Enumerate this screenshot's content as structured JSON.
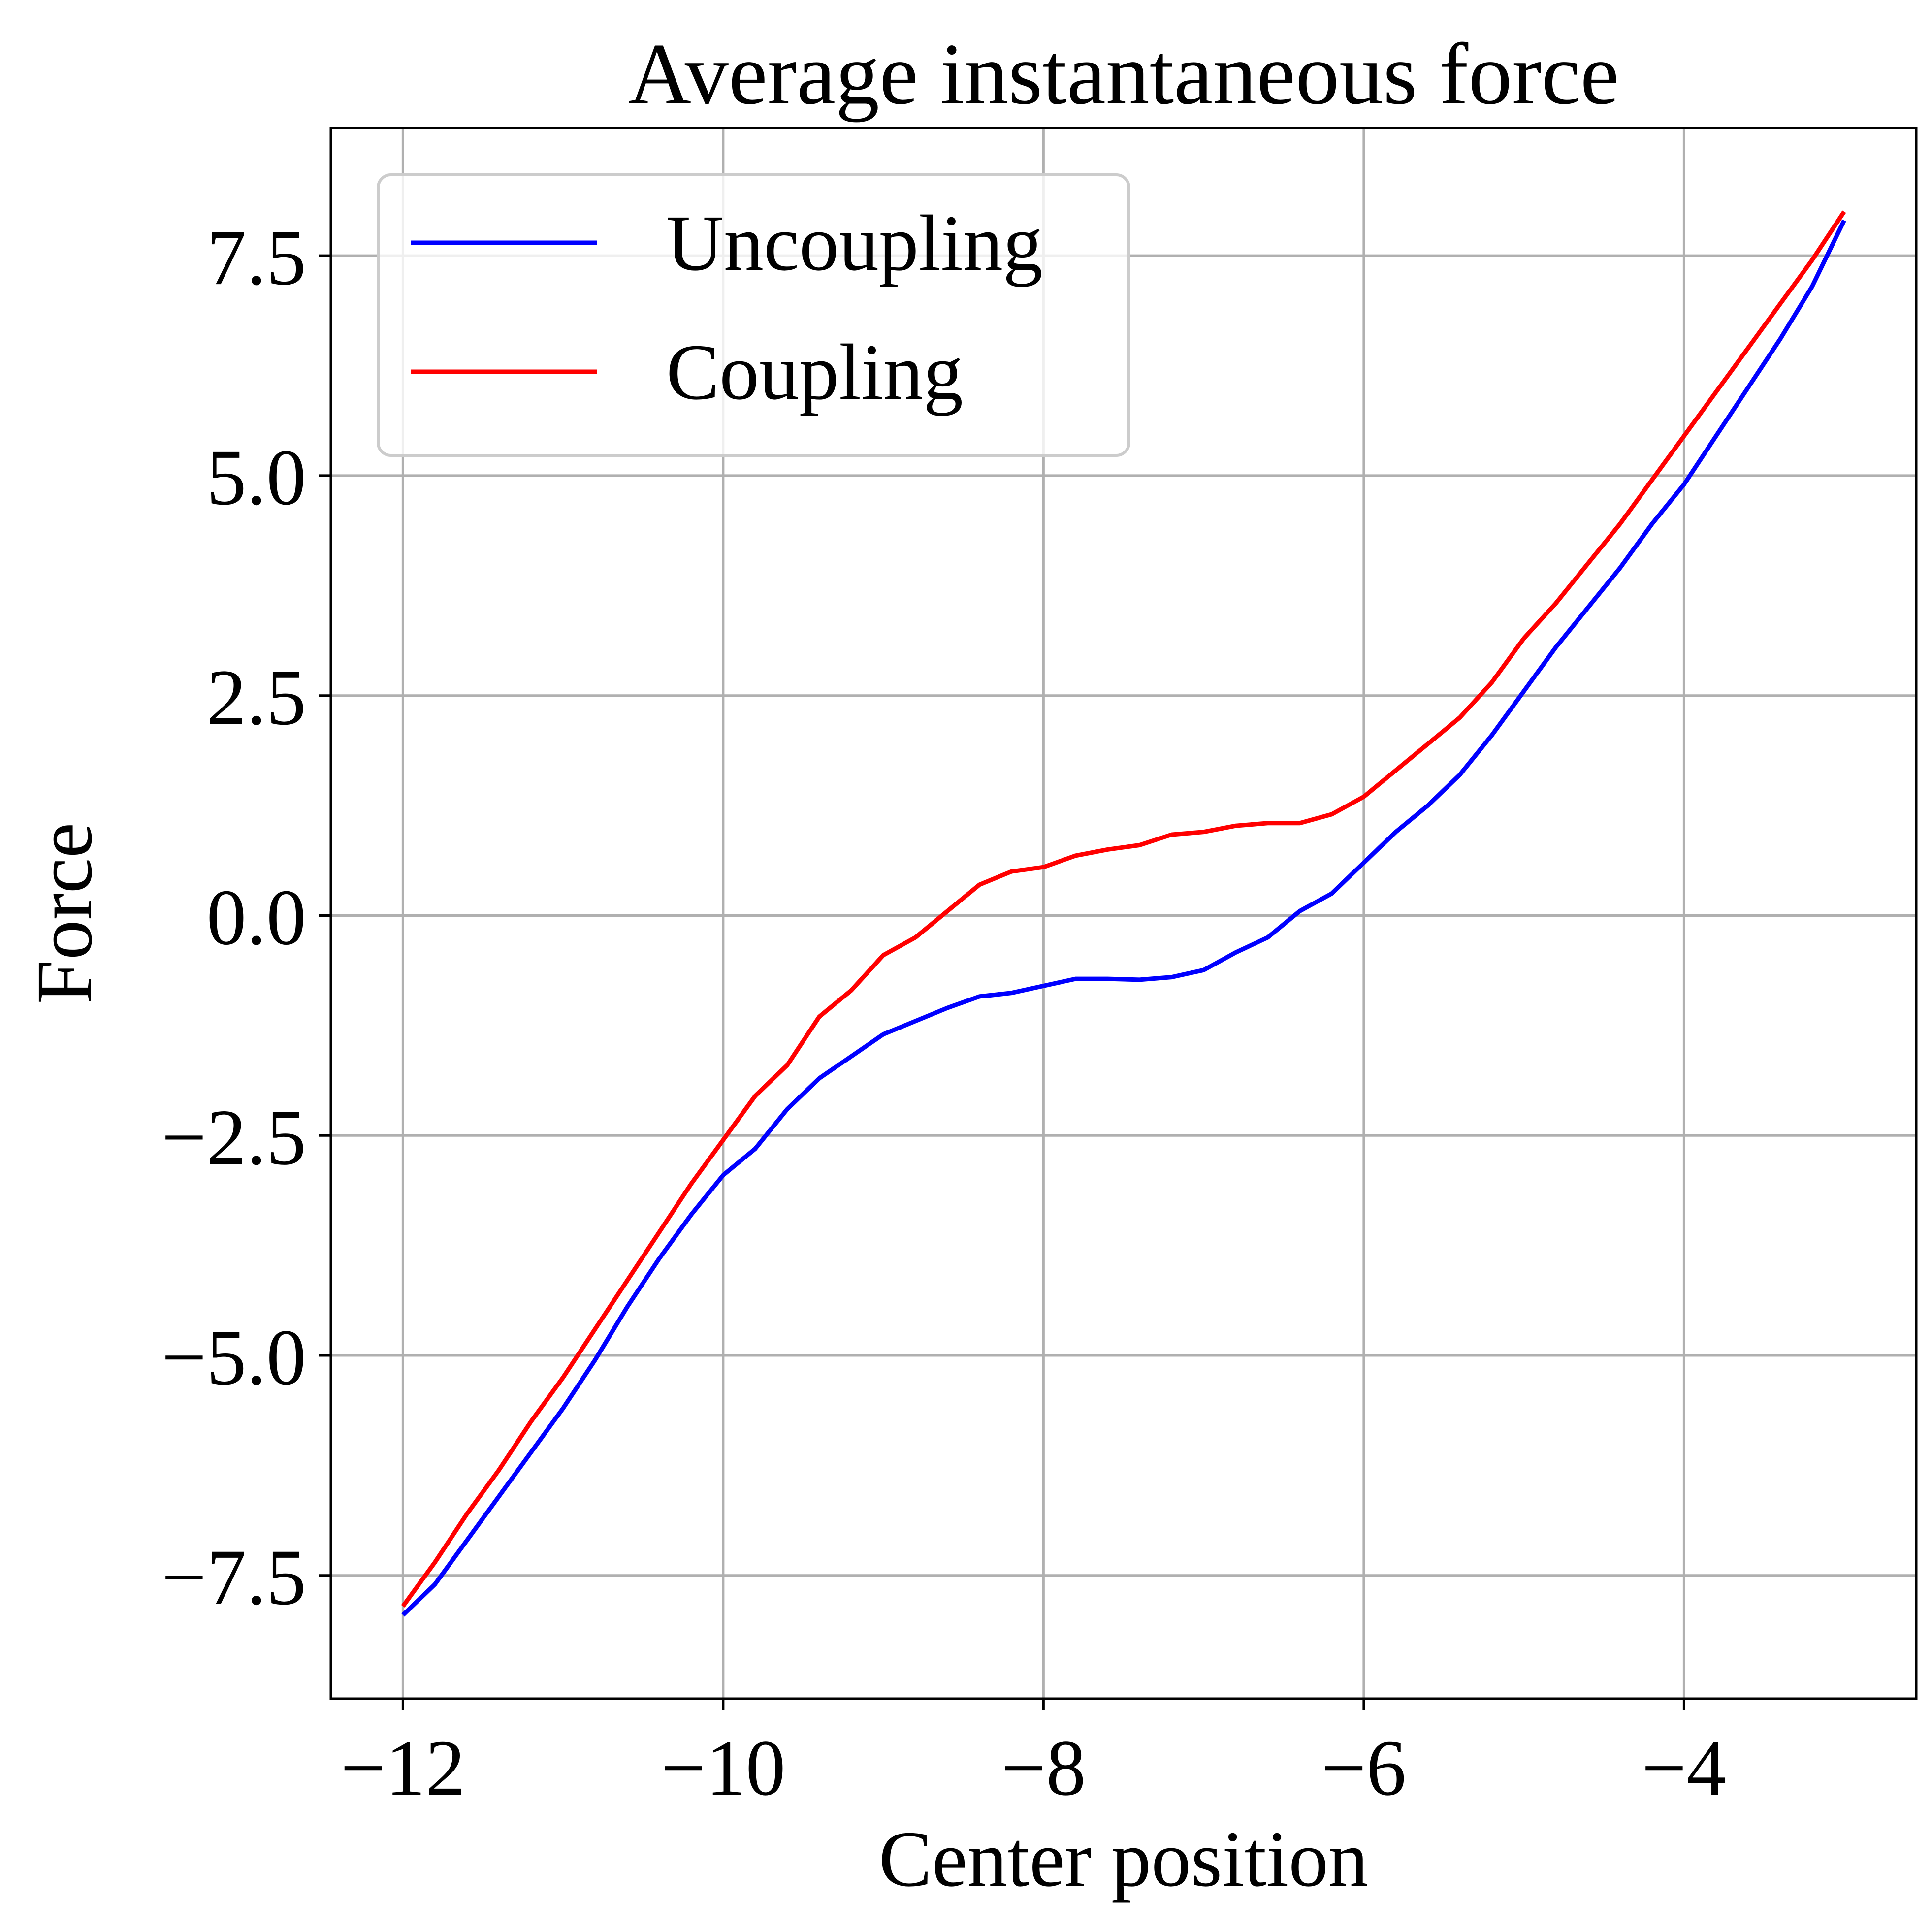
{
  "chart_data": {
    "type": "line",
    "title": "Average instantaneous force",
    "xlabel": "Center position",
    "ylabel": "Force",
    "xlim": [
      -12.45,
      -2.55
    ],
    "ylim": [
      -8.9,
      8.95
    ],
    "xticks": [
      -12,
      -10,
      -8,
      -6,
      -4
    ],
    "xtick_labels": [
      "−12",
      "−10",
      "−8",
      "−6",
      "−4"
    ],
    "yticks": [
      -7.5,
      -5.0,
      -2.5,
      0.0,
      2.5,
      5.0,
      7.5
    ],
    "ytick_labels": [
      "−7.5",
      "−5.0",
      "−2.5",
      "0.0",
      "2.5",
      "5.0",
      "7.5"
    ],
    "grid": true,
    "legend_position": "upper-left",
    "series": [
      {
        "name": "Uncoupling",
        "color": "#0000ff",
        "x": [
          -12.0,
          -11.8,
          -11.6,
          -11.4,
          -11.2,
          -11.0,
          -10.8,
          -10.6,
          -10.4,
          -10.2,
          -10.0,
          -9.8,
          -9.6,
          -9.4,
          -9.2,
          -9.0,
          -8.8,
          -8.6,
          -8.4,
          -8.2,
          -8.0,
          -7.8,
          -7.6,
          -7.4,
          -7.2,
          -7.0,
          -6.8,
          -6.6,
          -6.4,
          -6.2,
          -6.0,
          -5.8,
          -5.6,
          -5.4,
          -5.2,
          -5.0,
          -4.8,
          -4.6,
          -4.4,
          -4.2,
          -4.0,
          -3.8,
          -3.6,
          -3.4,
          -3.2,
          -3.0
        ],
        "y": [
          -7.95,
          -7.6,
          -7.1,
          -6.6,
          -6.1,
          -5.6,
          -5.05,
          -4.45,
          -3.9,
          -3.4,
          -2.95,
          -2.65,
          -2.2,
          -1.85,
          -1.6,
          -1.35,
          -1.2,
          -1.05,
          -0.92,
          -0.88,
          -0.8,
          -0.72,
          -0.72,
          -0.73,
          -0.7,
          -0.62,
          -0.42,
          -0.25,
          0.05,
          0.25,
          0.6,
          0.95,
          1.25,
          1.6,
          2.05,
          2.55,
          3.05,
          3.5,
          3.95,
          4.45,
          4.9,
          5.45,
          6.0,
          6.55,
          7.15,
          7.9
        ]
      },
      {
        "name": "Coupling",
        "color": "#ff0000",
        "x": [
          -12.0,
          -11.8,
          -11.6,
          -11.4,
          -11.2,
          -11.0,
          -10.8,
          -10.6,
          -10.4,
          -10.2,
          -10.0,
          -9.8,
          -9.6,
          -9.4,
          -9.2,
          -9.0,
          -8.8,
          -8.6,
          -8.4,
          -8.2,
          -8.0,
          -7.8,
          -7.6,
          -7.4,
          -7.2,
          -7.0,
          -6.8,
          -6.6,
          -6.4,
          -6.2,
          -6.0,
          -5.8,
          -5.6,
          -5.4,
          -5.2,
          -5.0,
          -4.8,
          -4.6,
          -4.4,
          -4.2,
          -4.0,
          -3.8,
          -3.6,
          -3.4,
          -3.2,
          -3.0
        ],
        "y": [
          -7.85,
          -7.35,
          -6.8,
          -6.3,
          -5.75,
          -5.25,
          -4.7,
          -4.15,
          -3.6,
          -3.05,
          -2.55,
          -2.05,
          -1.7,
          -1.15,
          -0.85,
          -0.45,
          -0.25,
          0.05,
          0.35,
          0.5,
          0.55,
          0.68,
          0.75,
          0.8,
          0.92,
          0.95,
          1.02,
          1.05,
          1.05,
          1.15,
          1.35,
          1.65,
          1.95,
          2.25,
          2.65,
          3.15,
          3.55,
          4.0,
          4.45,
          4.95,
          5.45,
          5.95,
          6.45,
          6.95,
          7.45,
          8.0
        ]
      }
    ]
  }
}
